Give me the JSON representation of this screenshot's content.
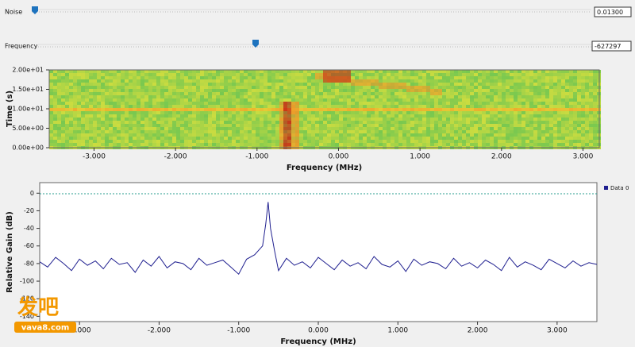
{
  "controls": [
    {
      "label": "Noise",
      "value": "0.01300"
    },
    {
      "label": "Frequency",
      "value": "-627297"
    }
  ],
  "watermark": {
    "text": "发吧",
    "url": "vava8.com"
  },
  "chart_data": [
    {
      "type": "waterfall",
      "xlabel": "Frequency (MHz)",
      "ylabel": "Time (s)",
      "xlim": [
        -3.55,
        3.2
      ],
      "xticks": [
        {
          "value": -3,
          "label": "-3.000"
        },
        {
          "value": -2,
          "label": "-2.000"
        },
        {
          "value": -1,
          "label": "-1.000"
        },
        {
          "value": 0,
          "label": "0.000"
        },
        {
          "value": 1,
          "label": "1.000"
        },
        {
          "value": 2,
          "label": "2.000"
        },
        {
          "value": 3,
          "label": "3.000"
        }
      ],
      "ylim": [
        0,
        20
      ],
      "yticks": [
        {
          "value": 0,
          "label": "0.00e+00"
        },
        {
          "value": 5,
          "label": "5.00e+00"
        },
        {
          "value": 10,
          "label": "1.00e+01"
        },
        {
          "value": 15,
          "label": "1.50e+01"
        },
        {
          "value": 20,
          "label": "2.00e+01"
        }
      ]
    },
    {
      "type": "line",
      "xlabel": "Frequency (MHz)",
      "ylabel": "Relative Gain (dB)",
      "xlim": [
        -3.5,
        3.5
      ],
      "xticks": [
        {
          "value": -3,
          "label": "-3.000"
        },
        {
          "value": -2,
          "label": "-2.000"
        },
        {
          "value": -1,
          "label": "-1.000"
        },
        {
          "value": 0,
          "label": "0.000"
        },
        {
          "value": 1,
          "label": "1.000"
        },
        {
          "value": 2,
          "label": "2.000"
        },
        {
          "value": 3,
          "label": "3.000"
        }
      ],
      "ylim": [
        -146,
        12
      ],
      "yticks": [
        0,
        -20,
        -40,
        -60,
        -80,
        -100,
        -120,
        -140
      ],
      "legend": "top-right",
      "x": [
        -3.5,
        -3.4,
        -3.3,
        -3.2,
        -3.1,
        -3.0,
        -2.9,
        -2.8,
        -2.7,
        -2.6,
        -2.5,
        -2.4,
        -2.3,
        -2.2,
        -2.1,
        -2.0,
        -1.9,
        -1.8,
        -1.7,
        -1.6,
        -1.5,
        -1.4,
        -1.3,
        -1.2,
        -1.1,
        -1.0,
        -0.9,
        -0.8,
        -0.7,
        -0.66,
        -0.63,
        -0.6,
        -0.55,
        -0.5,
        -0.4,
        -0.3,
        -0.2,
        -0.1,
        0.0,
        0.1,
        0.2,
        0.3,
        0.4,
        0.5,
        0.6,
        0.7,
        0.8,
        0.9,
        1.0,
        1.1,
        1.2,
        1.3,
        1.4,
        1.5,
        1.6,
        1.7,
        1.8,
        1.9,
        2.0,
        2.1,
        2.2,
        2.3,
        2.4,
        2.5,
        2.6,
        2.7,
        2.8,
        2.9,
        3.0,
        3.1,
        3.2,
        3.3,
        3.4,
        3.5
      ],
      "series": [
        {
          "name": "Data 0",
          "color": "#1f1f8f",
          "values": [
            -78,
            -84,
            -73,
            -80,
            -88,
            -75,
            -82,
            -77,
            -86,
            -74,
            -81,
            -79,
            -90,
            -76,
            -83,
            -72,
            -85,
            -78,
            -80,
            -87,
            -74,
            -82,
            -79,
            -76,
            -84,
            -92,
            -75,
            -70,
            -60,
            -35,
            -10,
            -40,
            -65,
            -88,
            -74,
            -82,
            -78,
            -85,
            -73,
            -80,
            -87,
            -76,
            -83,
            -79,
            -86,
            -72,
            -81,
            -84,
            -77,
            -89,
            -75,
            -82,
            -78,
            -80,
            -86,
            -74,
            -83,
            -79,
            -85,
            -76,
            -81,
            -88,
            -73,
            -84,
            -78,
            -82,
            -87,
            -75,
            -80,
            -85,
            -77,
            -83,
            -79,
            -81
          ]
        }
      ]
    }
  ]
}
